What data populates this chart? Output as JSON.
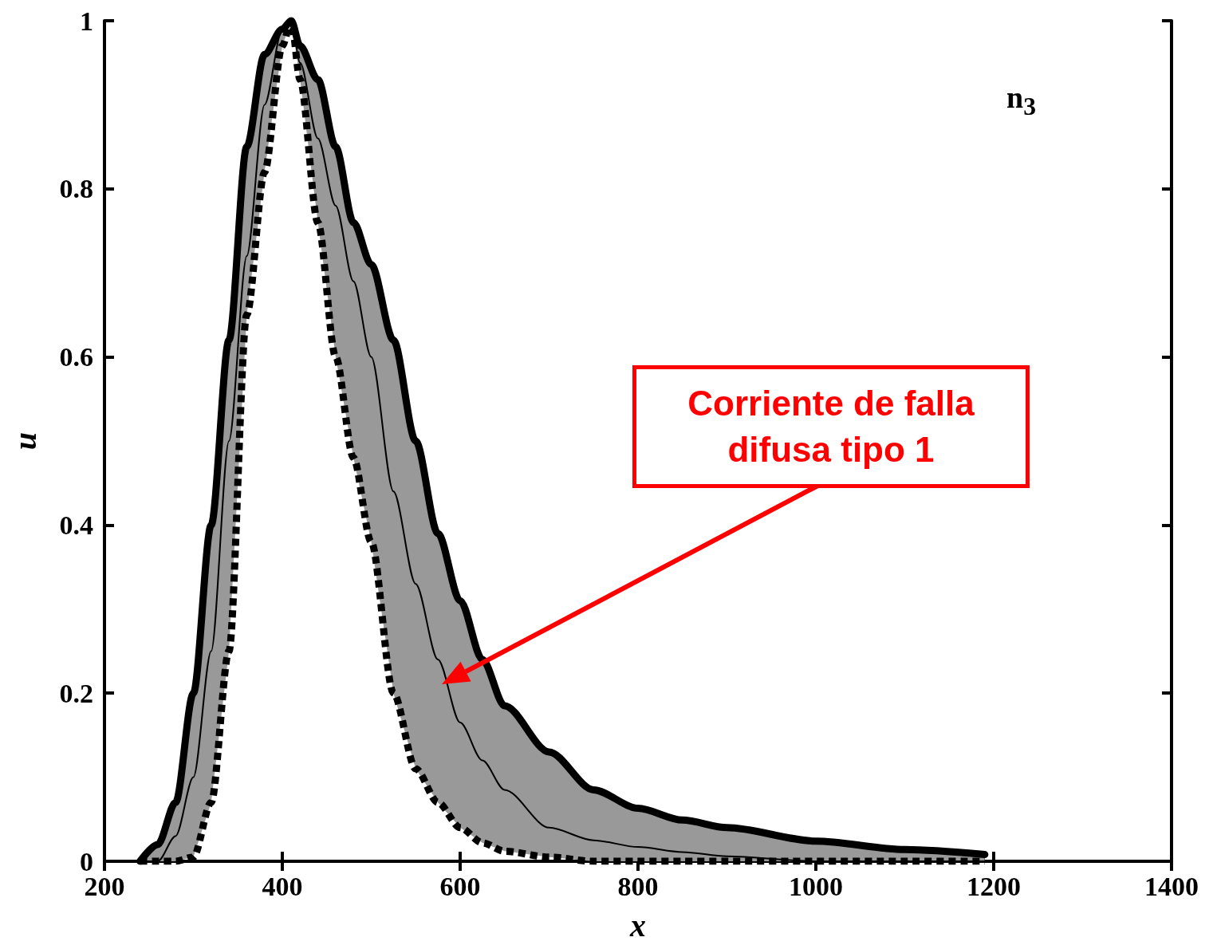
{
  "chart_data": {
    "type": "line",
    "xlabel": "x",
    "ylabel": "u",
    "x": [
      240,
      260,
      280,
      300,
      320,
      340,
      360,
      380,
      400,
      410,
      420,
      440,
      460,
      480,
      500,
      525,
      550,
      575,
      600,
      625,
      650,
      700,
      750,
      800,
      850,
      900,
      1000,
      1100,
      1190
    ],
    "series": [
      {
        "color": "#000000",
        "line_style": "solid",
        "values": [
          0,
          0,
          0.03,
          0.1,
          0.25,
          0.5,
          0.72,
          0.9,
          0.99,
          1.0,
          0.95,
          0.86,
          0.78,
          0.69,
          0.6,
          0.44,
          0.33,
          0.24,
          0.165,
          0.12,
          0.085,
          0.04,
          0.025,
          0.017,
          0.011,
          0.006,
          0,
          0,
          0
        ],
        "lower": [
          0,
          0,
          0,
          0.005,
          0.07,
          0.25,
          0.65,
          0.82,
          0.97,
          1.0,
          0.93,
          0.76,
          0.6,
          0.48,
          0.38,
          0.2,
          0.11,
          0.07,
          0.04,
          0.022,
          0.012,
          0.005,
          0,
          0,
          0,
          0,
          0,
          0,
          0
        ],
        "upper": [
          0,
          0.02,
          0.07,
          0.2,
          0.4,
          0.62,
          0.85,
          0.96,
          0.99,
          1.0,
          0.97,
          0.93,
          0.85,
          0.76,
          0.71,
          0.62,
          0.5,
          0.39,
          0.31,
          0.24,
          0.185,
          0.13,
          0.085,
          0.063,
          0.049,
          0.04,
          0.024,
          0.014,
          0.008
        ]
      }
    ],
    "xlim": [
      200,
      1400
    ],
    "xticks": [
      200,
      400,
      600,
      800,
      1000,
      1200,
      1400
    ],
    "ylim": [
      0,
      1
    ],
    "yticks": [
      0,
      0.2,
      0.4,
      0.6,
      0.8,
      1
    ],
    "grid": false,
    "marker": "none",
    "annotations": [
      "n$_{3}$",
      "Corriente de falla difusa tipo 1"
    ]
  }
}
